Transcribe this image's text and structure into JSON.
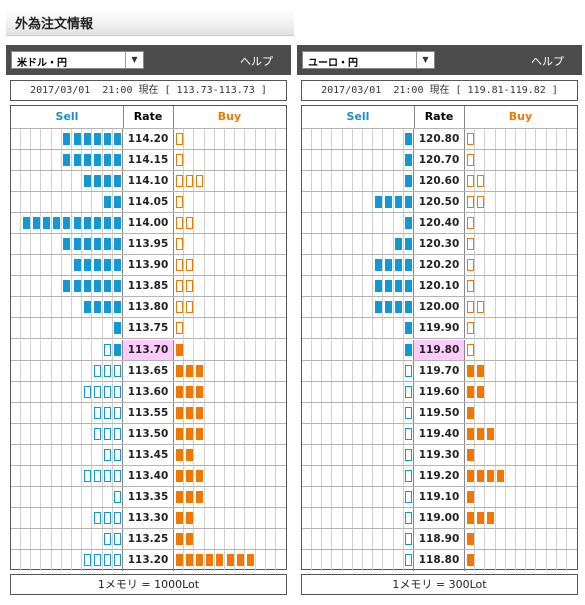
{
  "page_title": "外為注文情報",
  "panels": [
    {
      "pair": "米ドル・円",
      "help": "ヘルプ",
      "info": "2017/03/01  21:00 現在 [ 113.73-113.73 ]",
      "headers": {
        "sell": "Sell",
        "rate": "Rate",
        "buy": "Buy"
      },
      "current_rate": "113.70",
      "rows": [
        {
          "rate": "114.20",
          "sell": 6,
          "sell_style": "filled",
          "buy": 1,
          "buy_style": "outline"
        },
        {
          "rate": "114.15",
          "sell": 6,
          "sell_style": "filled",
          "buy": 1,
          "buy_style": "outline"
        },
        {
          "rate": "114.10",
          "sell": 4,
          "sell_style": "filled",
          "buy": 3,
          "buy_style": "outline"
        },
        {
          "rate": "114.05",
          "sell": 2,
          "sell_style": "filled",
          "buy": 1,
          "buy_style": "outline"
        },
        {
          "rate": "114.00",
          "sell": 10,
          "sell_style": "filled",
          "buy": 2,
          "buy_style": "outline"
        },
        {
          "rate": "113.95",
          "sell": 6,
          "sell_style": "filled",
          "buy": 1,
          "buy_style": "outline"
        },
        {
          "rate": "113.90",
          "sell": 5,
          "sell_style": "filled",
          "buy": 2,
          "buy_style": "outline"
        },
        {
          "rate": "113.85",
          "sell": 6,
          "sell_style": "filled",
          "buy": 2,
          "buy_style": "outline"
        },
        {
          "rate": "113.80",
          "sell": 4,
          "sell_style": "filled",
          "buy": 2,
          "buy_style": "outline"
        },
        {
          "rate": "113.75",
          "sell": 1,
          "sell_style": "filled",
          "buy": 1,
          "buy_style": "outline"
        },
        {
          "rate": "113.70",
          "sell": 2,
          "sell_style": "mixed",
          "buy": 1,
          "buy_style": "filled"
        },
        {
          "rate": "113.65",
          "sell": 3,
          "sell_style": "outline",
          "buy": 3,
          "buy_style": "filled"
        },
        {
          "rate": "113.60",
          "sell": 4,
          "sell_style": "outline",
          "buy": 3,
          "buy_style": "filled"
        },
        {
          "rate": "113.55",
          "sell": 3,
          "sell_style": "outline",
          "buy": 3,
          "buy_style": "filled"
        },
        {
          "rate": "113.50",
          "sell": 3,
          "sell_style": "outline",
          "buy": 3,
          "buy_style": "filled"
        },
        {
          "rate": "113.45",
          "sell": 2,
          "sell_style": "outline",
          "buy": 2,
          "buy_style": "filled"
        },
        {
          "rate": "113.40",
          "sell": 4,
          "sell_style": "outline",
          "buy": 3,
          "buy_style": "filled"
        },
        {
          "rate": "113.35",
          "sell": 1,
          "sell_style": "outline",
          "buy": 3,
          "buy_style": "filled"
        },
        {
          "rate": "113.30",
          "sell": 3,
          "sell_style": "outline",
          "buy": 2,
          "buy_style": "filled"
        },
        {
          "rate": "113.25",
          "sell": 2,
          "sell_style": "outline",
          "buy": 2,
          "buy_style": "filled"
        },
        {
          "rate": "113.20",
          "sell": 4,
          "sell_style": "outline",
          "buy": 8,
          "buy_style": "filled"
        }
      ],
      "footer": "1メモリ = 1000Lot"
    },
    {
      "pair": "ユーロ・円",
      "help": "ヘルプ",
      "info": "2017/03/01  21:00 現在 [ 119.81-119.82 ]",
      "headers": {
        "sell": "Sell",
        "rate": "Rate",
        "buy": "Buy"
      },
      "current_rate": "119.80",
      "rows": [
        {
          "rate": "120.80",
          "sell": 1,
          "sell_style": "filled",
          "buy": 1,
          "buy_style": "outline"
        },
        {
          "rate": "120.70",
          "sell": 1,
          "sell_style": "filled",
          "buy": 1,
          "buy_style": "outline"
        },
        {
          "rate": "120.60",
          "sell": 1,
          "sell_style": "filled",
          "buy": 2,
          "buy_style": "outline"
        },
        {
          "rate": "120.50",
          "sell": 4,
          "sell_style": "filled",
          "buy": 2,
          "buy_style": "outline"
        },
        {
          "rate": "120.40",
          "sell": 1,
          "sell_style": "filled",
          "buy": 1,
          "buy_style": "outline"
        },
        {
          "rate": "120.30",
          "sell": 2,
          "sell_style": "filled",
          "buy": 1,
          "buy_style": "outline"
        },
        {
          "rate": "120.20",
          "sell": 4,
          "sell_style": "filled",
          "buy": 1,
          "buy_style": "outline"
        },
        {
          "rate": "120.10",
          "sell": 4,
          "sell_style": "filled",
          "buy": 1,
          "buy_style": "outline"
        },
        {
          "rate": "120.00",
          "sell": 4,
          "sell_style": "filled",
          "buy": 2,
          "buy_style": "outline"
        },
        {
          "rate": "119.90",
          "sell": 1,
          "sell_style": "filled",
          "buy": 1,
          "buy_style": "outline"
        },
        {
          "rate": "119.80",
          "sell": 1,
          "sell_style": "filled",
          "buy": 1,
          "buy_style": "outline"
        },
        {
          "rate": "119.70",
          "sell": 1,
          "sell_style": "outline",
          "buy": 2,
          "buy_style": "filled"
        },
        {
          "rate": "119.60",
          "sell": 1,
          "sell_style": "outline",
          "buy": 2,
          "buy_style": "filled"
        },
        {
          "rate": "119.50",
          "sell": 1,
          "sell_style": "outline",
          "buy": 1,
          "buy_style": "filled"
        },
        {
          "rate": "119.40",
          "sell": 1,
          "sell_style": "outline",
          "buy": 3,
          "buy_style": "filled"
        },
        {
          "rate": "119.30",
          "sell": 1,
          "sell_style": "outline",
          "buy": 1,
          "buy_style": "filled"
        },
        {
          "rate": "119.20",
          "sell": 1,
          "sell_style": "outline",
          "buy": 4,
          "buy_style": "filled"
        },
        {
          "rate": "119.10",
          "sell": 1,
          "sell_style": "outline",
          "buy": 1,
          "buy_style": "filled"
        },
        {
          "rate": "119.00",
          "sell": 1,
          "sell_style": "outline",
          "buy": 3,
          "buy_style": "filled"
        },
        {
          "rate": "118.90",
          "sell": 1,
          "sell_style": "outline",
          "buy": 1,
          "buy_style": "filled"
        },
        {
          "rate": "118.80",
          "sell": 1,
          "sell_style": "outline",
          "buy": 1,
          "buy_style": "filled"
        }
      ],
      "footer": "1メモリ = 300Lot"
    }
  ],
  "colors": {
    "sell": "#1498d4",
    "buy": "#f07800",
    "current_rate_bg": "#fccdfc"
  },
  "icons": {
    "select_arrow": "chevron-down-icon"
  }
}
